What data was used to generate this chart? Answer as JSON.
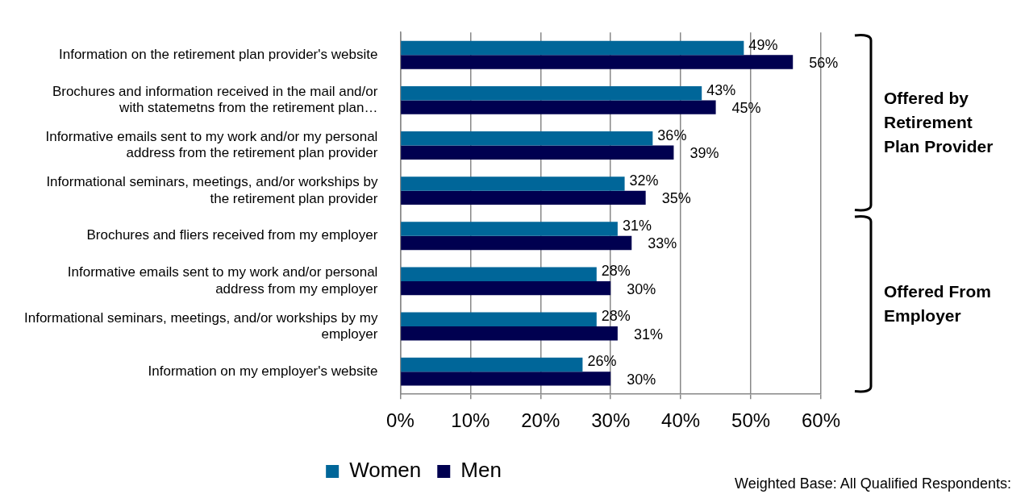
{
  "chart_data": {
    "type": "bar",
    "orientation": "horizontal",
    "categories": [
      "Information on the retirement plan provider's website",
      "Brochures and information received in the mail and/or with statemetns from the retirement plan…",
      "Informative emails sent to my work and/or my personal address from the retirement plan provider",
      "Informational seminars, meetings, and/or workships by the retirement plan provider",
      "Brochures and fliers received from my employer",
      "Informative emails sent to my work and/or personal address from my employer",
      "Informational seminars, meetings, and/or workships by my employer",
      "Information on my employer's website"
    ],
    "series": [
      {
        "name": "Women",
        "color": "#006699",
        "values": [
          49,
          43,
          36,
          32,
          31,
          28,
          28,
          26
        ],
        "value_labels": [
          "49%",
          "43%",
          "36%",
          "32%",
          "31%",
          "28%",
          "28%",
          "26%"
        ]
      },
      {
        "name": "Men",
        "color": "#000050",
        "values": [
          56,
          45,
          39,
          35,
          33,
          30,
          31,
          30
        ],
        "value_labels": [
          "56%",
          "45%",
          "39%",
          "35%",
          "33%",
          "30%",
          "31%",
          "30%"
        ]
      }
    ],
    "xlim": [
      0,
      60
    ],
    "xticks": [
      {
        "value": 0,
        "label": "0%"
      },
      {
        "value": 10,
        "label": "10%"
      },
      {
        "value": 20,
        "label": "20%"
      },
      {
        "value": 30,
        "label": "30%"
      },
      {
        "value": 40,
        "label": "40%"
      },
      {
        "value": 50,
        "label": "50%"
      },
      {
        "value": 60,
        "label": "60%"
      }
    ],
    "grid": "x",
    "legend": "bottom",
    "annotations": [
      "Offered by Retirement Plan Provider",
      "Offered From Employer",
      "Weighted Base: All Qualified Respondents:"
    ]
  }
}
